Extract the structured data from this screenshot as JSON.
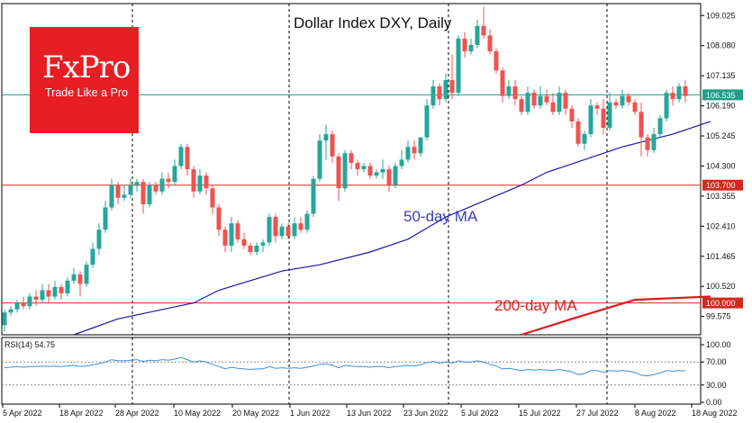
{
  "logo": {
    "main": "FxPro",
    "tagline": "Trade Like a Pro"
  },
  "chart_data": {
    "type": "candlestick",
    "title": "Dollar Index DXY, Daily",
    "ylim": [
      99.0,
      109.4
    ],
    "y_ticks": [
      "109.025",
      "108.080",
      "107.135",
      "106.190",
      "105.245",
      "104.300",
      "103.355",
      "102.410",
      "101.465",
      "100.520",
      "99.575"
    ],
    "x_ticks": [
      "5 Apr 2022",
      "18 Apr 2022",
      "28 Apr 2022",
      "10 May 2022",
      "20 May 2022",
      "1 Jun 2022",
      "13 Jun 2022",
      "23 Jun 2022",
      "5 Jul 2022",
      "15 Jul 2022",
      "27 Jul 2022",
      "8 Aug 2022",
      "18 Aug 2022"
    ],
    "price_badges": [
      {
        "label": "106.535",
        "value": 106.535,
        "color": "#1f9e89"
      },
      {
        "label": "103.700",
        "value": 103.7,
        "color": "#d42a1e"
      },
      {
        "label": "100.000",
        "value": 100.0,
        "color": "#d42a1e"
      }
    ],
    "horizontal_lines": [
      {
        "value": 106.535,
        "color": "#1f9e89"
      },
      {
        "value": 103.7,
        "color": "#d42a1e"
      },
      {
        "value": 100.0,
        "color": "#d42a1e"
      }
    ],
    "ma50": {
      "label": "50-day MA",
      "color": "#1a1aa6",
      "points": [
        [
          11,
          99.0
        ],
        [
          18,
          99.5
        ],
        [
          30,
          100.0
        ],
        [
          34,
          100.4
        ],
        [
          44,
          101.0
        ],
        [
          50,
          101.2
        ],
        [
          58,
          101.6
        ],
        [
          64,
          102.0
        ],
        [
          70,
          102.7
        ],
        [
          76,
          103.2
        ],
        [
          82,
          103.7
        ],
        [
          86,
          104.1
        ],
        [
          92,
          104.5
        ],
        [
          98,
          104.9
        ],
        [
          106,
          105.3
        ],
        [
          112,
          105.7
        ]
      ]
    },
    "ma200": {
      "label": "200-day MA",
      "color": "#e01b1b",
      "points": [
        [
          82,
          99.0
        ],
        [
          90,
          99.5
        ],
        [
          100,
          100.1
        ],
        [
          112,
          100.2
        ]
      ]
    },
    "candles": [
      [
        99.3,
        99.7,
        99.1,
        99.8
      ],
      [
        99.7,
        99.8,
        99.6,
        99.9
      ],
      [
        99.8,
        100.0,
        99.7,
        100.1
      ],
      [
        100.0,
        99.9,
        99.8,
        100.2
      ],
      [
        99.9,
        100.2,
        99.8,
        100.3
      ],
      [
        100.2,
        100.1,
        99.9,
        100.4
      ],
      [
        100.1,
        100.4,
        100.0,
        100.6
      ],
      [
        100.4,
        100.2,
        100.0,
        100.6
      ],
      [
        100.2,
        100.5,
        100.1,
        100.7
      ],
      [
        100.5,
        100.3,
        100.1,
        100.6
      ],
      [
        100.3,
        100.7,
        100.2,
        100.8
      ],
      [
        100.7,
        100.9,
        100.6,
        101.1
      ],
      [
        100.9,
        100.6,
        100.2,
        101.0
      ],
      [
        100.6,
        101.2,
        100.5,
        101.3
      ],
      [
        101.2,
        101.7,
        101.1,
        101.9
      ],
      [
        101.7,
        102.3,
        101.5,
        102.5
      ],
      [
        102.3,
        103.0,
        102.2,
        103.2
      ],
      [
        103.0,
        103.7,
        102.9,
        103.9
      ],
      [
        103.7,
        103.3,
        103.1,
        103.8
      ],
      [
        103.3,
        103.4,
        103.2,
        103.7
      ],
      [
        103.4,
        103.7,
        103.3,
        103.9
      ],
      [
        103.7,
        103.8,
        103.5,
        103.9
      ],
      [
        103.8,
        103.1,
        102.8,
        103.9
      ],
      [
        103.1,
        103.7,
        103.0,
        103.8
      ],
      [
        103.7,
        103.5,
        103.4,
        103.8
      ],
      [
        103.5,
        103.9,
        103.4,
        104.1
      ],
      [
        103.9,
        103.8,
        103.6,
        104.1
      ],
      [
        103.8,
        104.3,
        103.7,
        104.5
      ],
      [
        104.3,
        104.9,
        104.2,
        105.0
      ],
      [
        104.9,
        104.2,
        104.0,
        105.0
      ],
      [
        104.2,
        103.5,
        103.3,
        104.3
      ],
      [
        103.5,
        104.0,
        103.4,
        104.2
      ],
      [
        104.0,
        103.6,
        103.4,
        104.1
      ],
      [
        103.6,
        103.0,
        102.8,
        103.7
      ],
      [
        103.0,
        102.3,
        102.1,
        103.1
      ],
      [
        102.3,
        101.8,
        101.6,
        102.4
      ],
      [
        101.8,
        102.5,
        101.6,
        102.7
      ],
      [
        102.5,
        102.0,
        101.9,
        102.6
      ],
      [
        102.0,
        101.8,
        101.7,
        102.2
      ],
      [
        101.8,
        101.6,
        101.5,
        101.9
      ],
      [
        101.6,
        101.8,
        101.5,
        101.9
      ],
      [
        101.8,
        101.9,
        101.6,
        102.0
      ],
      [
        101.9,
        102.7,
        101.8,
        102.8
      ],
      [
        102.7,
        102.1,
        101.9,
        102.8
      ],
      [
        102.1,
        102.4,
        102.0,
        102.5
      ],
      [
        102.4,
        102.1,
        102.0,
        102.5
      ],
      [
        102.1,
        102.5,
        102.0,
        102.7
      ],
      [
        102.5,
        102.3,
        102.2,
        102.7
      ],
      [
        102.3,
        102.8,
        102.2,
        102.9
      ],
      [
        102.8,
        103.9,
        102.7,
        104.0
      ],
      [
        103.9,
        105.1,
        103.8,
        105.3
      ],
      [
        105.1,
        105.3,
        104.5,
        105.6
      ],
      [
        105.3,
        104.6,
        104.4,
        105.4
      ],
      [
        104.6,
        103.6,
        103.2,
        104.7
      ],
      [
        103.6,
        104.7,
        103.5,
        104.8
      ],
      [
        104.7,
        104.4,
        104.2,
        104.8
      ],
      [
        104.4,
        104.2,
        104.0,
        104.5
      ],
      [
        104.2,
        104.3,
        104.1,
        104.4
      ],
      [
        104.3,
        104.0,
        103.9,
        104.4
      ],
      [
        104.0,
        104.1,
        103.9,
        104.2
      ],
      [
        104.1,
        104.2,
        103.9,
        104.5
      ],
      [
        104.2,
        103.7,
        103.5,
        104.3
      ],
      [
        103.7,
        104.3,
        103.6,
        104.4
      ],
      [
        104.3,
        104.5,
        104.2,
        104.8
      ],
      [
        104.5,
        104.9,
        104.4,
        105.1
      ],
      [
        104.9,
        104.7,
        104.5,
        105.1
      ],
      [
        104.7,
        105.2,
        104.6,
        105.2
      ],
      [
        105.2,
        106.2,
        105.1,
        106.4
      ],
      [
        106.2,
        106.8,
        106.1,
        107.0
      ],
      [
        106.8,
        106.4,
        106.2,
        106.9
      ],
      [
        106.4,
        107.0,
        106.3,
        107.2
      ],
      [
        107.0,
        106.6,
        106.4,
        107.8
      ],
      [
        106.6,
        108.3,
        106.5,
        108.4
      ],
      [
        108.3,
        107.9,
        107.7,
        108.5
      ],
      [
        107.9,
        108.1,
        107.8,
        108.3
      ],
      [
        108.1,
        108.7,
        108.0,
        108.9
      ],
      [
        108.7,
        108.4,
        108.3,
        109.3
      ],
      [
        108.4,
        107.9,
        107.8,
        108.6
      ],
      [
        107.9,
        107.3,
        107.2,
        108.0
      ],
      [
        107.3,
        106.5,
        106.3,
        107.4
      ],
      [
        106.5,
        106.8,
        106.4,
        107.0
      ],
      [
        106.8,
        106.4,
        106.2,
        107.0
      ],
      [
        106.4,
        106.0,
        105.9,
        106.5
      ],
      [
        106.0,
        106.6,
        105.9,
        106.8
      ],
      [
        106.6,
        106.2,
        106.1,
        106.7
      ],
      [
        106.2,
        106.5,
        106.1,
        106.8
      ],
      [
        106.5,
        106.3,
        106.2,
        106.7
      ],
      [
        106.3,
        106.0,
        105.9,
        106.6
      ],
      [
        106.0,
        106.6,
        105.9,
        106.8
      ],
      [
        106.6,
        106.1,
        105.9,
        106.7
      ],
      [
        106.1,
        105.7,
        105.5,
        106.2
      ],
      [
        105.7,
        105.0,
        104.9,
        105.8
      ],
      [
        105.0,
        105.3,
        104.8,
        105.4
      ],
      [
        105.3,
        106.2,
        105.2,
        106.4
      ],
      [
        106.2,
        106.1,
        105.9,
        106.3
      ],
      [
        106.1,
        105.5,
        105.3,
        106.4
      ],
      [
        105.5,
        106.3,
        105.4,
        106.6
      ],
      [
        106.3,
        106.2,
        106.1,
        106.4
      ],
      [
        106.2,
        106.5,
        106.1,
        106.7
      ],
      [
        106.5,
        106.3,
        106.2,
        106.6
      ],
      [
        106.3,
        106.0,
        105.9,
        106.4
      ],
      [
        106.0,
        105.2,
        104.6,
        106.3
      ],
      [
        105.2,
        104.8,
        104.6,
        105.3
      ],
      [
        104.8,
        105.3,
        104.7,
        105.5
      ],
      [
        105.3,
        105.8,
        105.2,
        105.9
      ],
      [
        105.8,
        106.6,
        105.7,
        106.7
      ],
      [
        106.6,
        106.4,
        106.2,
        106.8
      ],
      [
        106.4,
        106.8,
        106.3,
        106.9
      ],
      [
        106.8,
        106.5,
        106.3,
        107.0
      ]
    ],
    "rsi": {
      "label": "RSI(14) 54.75",
      "ticks": [
        "100.00",
        "70.00",
        "30.00",
        "0.00"
      ],
      "ylim": [
        0,
        100
      ],
      "levels": [
        70,
        30
      ],
      "color": "#3c8fd8",
      "values": [
        60,
        61,
        62,
        61,
        62,
        62,
        63,
        62,
        63,
        62,
        63,
        64,
        62,
        63,
        65,
        67,
        70,
        74,
        72,
        72,
        73,
        74,
        71,
        73,
        72,
        74,
        73,
        75,
        78,
        74,
        70,
        72,
        70,
        66,
        62,
        58,
        61,
        59,
        58,
        57,
        58,
        58,
        62,
        59,
        60,
        59,
        60,
        59,
        61,
        63,
        66,
        67,
        64,
        60,
        64,
        63,
        62,
        62,
        61,
        62,
        62,
        60,
        62,
        63,
        64,
        63,
        65,
        69,
        71,
        68,
        70,
        68,
        72,
        70,
        70,
        72,
        70,
        66,
        63,
        58,
        59,
        57,
        55,
        57,
        56,
        57,
        56,
        55,
        57,
        55,
        53,
        48,
        50,
        55,
        55,
        52,
        55,
        54,
        55,
        54,
        52,
        47,
        46,
        48,
        51,
        55,
        54,
        55,
        54.75
      ]
    }
  }
}
